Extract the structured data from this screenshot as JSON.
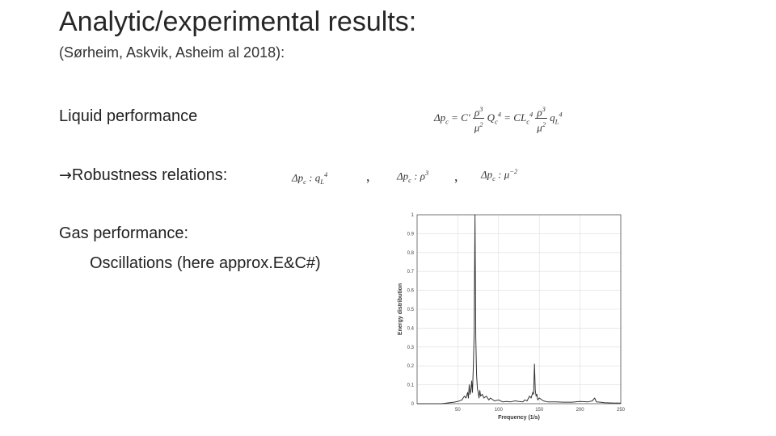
{
  "slide": {
    "title": "Analytic/experimental results:",
    "subtitle": "(Sørheim, Askvik, Asheim al 2018):",
    "liquid_label": "Liquid performance",
    "robust_arrow": "→",
    "robust_label": "Robustness relations:",
    "gas_label": "Gas performance:",
    "osc_label": "Oscillations (here approx.E&C#)"
  },
  "equations": {
    "main": {
      "lhs": "Δp",
      "lhs_sub": "c",
      "eq1": "= C",
      "eq1_prime": "′",
      "f1_num": "ρ",
      "f1_num_sup": "3",
      "f1_den": "μ",
      "f1_den_sup": "2",
      "q1": "Q",
      "q1_sub": "c",
      "q1_sup": "4",
      "eq2": "= CL",
      "l_sub": "c",
      "l_sup": "4",
      "f2_num": "ρ",
      "f2_num_sup": "3",
      "f2_den": "μ",
      "f2_den_sup": "2",
      "q2": "q",
      "q2_sub": "L",
      "q2_sup": "4"
    },
    "rel1": {
      "lhs": "Δp",
      "lhs_sub": "c",
      "sep": " : ",
      "rhs": "q",
      "rhs_sub": "L",
      "rhs_sup": "4"
    },
    "rel2": {
      "lhs": "Δp",
      "lhs_sub": "c",
      "sep": " : ",
      "rhs": "ρ",
      "rhs_sup": "3"
    },
    "rel3": {
      "lhs": "Δp",
      "lhs_sub": "c",
      "sep": " : ",
      "rhs": "μ",
      "rhs_sup": "−2"
    },
    "comma": ","
  },
  "chart_data": {
    "type": "line",
    "title": "",
    "xlabel": "Frequency (1/s)",
    "ylabel": "Energy distribution",
    "xlim": [
      0,
      250
    ],
    "ylim": [
      0,
      1
    ],
    "xticks": [
      50,
      100,
      150,
      200,
      250
    ],
    "yticks": [
      0,
      0.1,
      0.2,
      0.3,
      0.4,
      0.5,
      0.6,
      0.7,
      0.8,
      0.9,
      1
    ],
    "ytick_labels": [
      "0",
      "0.1",
      "0.2",
      "0.3",
      "0.4",
      "0.5",
      "0.6",
      "0.7",
      "0.8",
      "0.9",
      "1"
    ],
    "grid": true,
    "series": [
      {
        "color": "#333333",
        "x": [
          0,
          10,
          20,
          30,
          40,
          45,
          50,
          55,
          58,
          60,
          62,
          63,
          64,
          65,
          66,
          67,
          68,
          69,
          70,
          71,
          72,
          73,
          74,
          75,
          76,
          77,
          78,
          80,
          82,
          85,
          88,
          90,
          95,
          100,
          105,
          110,
          115,
          120,
          125,
          130,
          132,
          135,
          138,
          140,
          142,
          143,
          144,
          145,
          146,
          147,
          148,
          150,
          155,
          160,
          170,
          180,
          190,
          200,
          210,
          215,
          218,
          220,
          225,
          230,
          240,
          250
        ],
        "y": [
          0,
          0,
          0,
          0,
          0.005,
          0.008,
          0.012,
          0.02,
          0.04,
          0.03,
          0.06,
          0.03,
          0.1,
          0.05,
          0.07,
          0.12,
          0.06,
          0.2,
          0.38,
          1.0,
          0.35,
          0.15,
          0.08,
          0.06,
          0.03,
          0.07,
          0.04,
          0.05,
          0.03,
          0.04,
          0.02,
          0.03,
          0.015,
          0.02,
          0.01,
          0.012,
          0.01,
          0.015,
          0.012,
          0.01,
          0.02,
          0.015,
          0.04,
          0.03,
          0.06,
          0.05,
          0.21,
          0.07,
          0.04,
          0.05,
          0.02,
          0.03,
          0.015,
          0.01,
          0.01,
          0.008,
          0.008,
          0.012,
          0.01,
          0.015,
          0.03,
          0.01,
          0.008,
          0.005,
          0.004,
          0.003
        ]
      }
    ]
  }
}
